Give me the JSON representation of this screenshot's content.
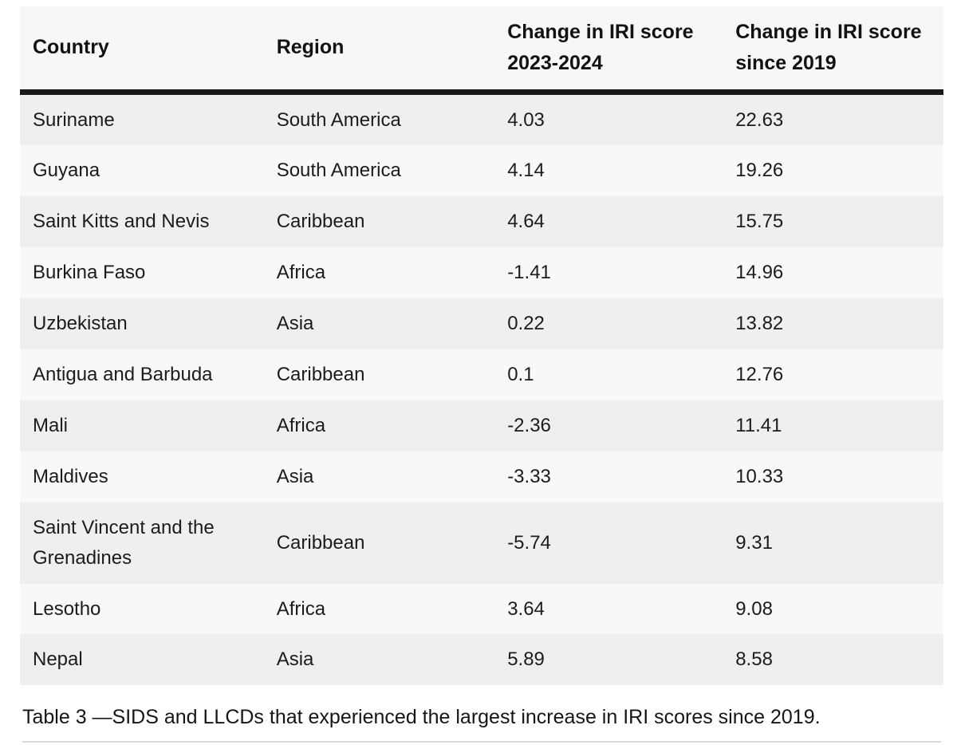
{
  "table": {
    "columns": [
      {
        "label": "Country"
      },
      {
        "label": "Region"
      },
      {
        "label": "Change in IRI score 2023-2024"
      },
      {
        "label": "Change in IRI score since 2019"
      }
    ],
    "rows": [
      {
        "country": "Suriname",
        "region": "South America",
        "change_2023_2024": "4.03",
        "change_since_2019": "22.63"
      },
      {
        "country": "Guyana",
        "region": "South America",
        "change_2023_2024": "4.14",
        "change_since_2019": "19.26"
      },
      {
        "country": "Saint Kitts and Nevis",
        "region": "Caribbean",
        "change_2023_2024": "4.64",
        "change_since_2019": "15.75"
      },
      {
        "country": "Burkina Faso",
        "region": "Africa",
        "change_2023_2024": "-1.41",
        "change_since_2019": "14.96"
      },
      {
        "country": "Uzbekistan",
        "region": "Asia",
        "change_2023_2024": "0.22",
        "change_since_2019": "13.82"
      },
      {
        "country": "Antigua and Barbuda",
        "region": "Caribbean",
        "change_2023_2024": "0.1",
        "change_since_2019": "12.76"
      },
      {
        "country": "Mali",
        "region": "Africa",
        "change_2023_2024": "-2.36",
        "change_since_2019": "11.41"
      },
      {
        "country": "Maldives",
        "region": "Asia",
        "change_2023_2024": "-3.33",
        "change_since_2019": "10.33"
      },
      {
        "country": "Saint Vincent and the Grenadines",
        "region": "Caribbean",
        "change_2023_2024": "-5.74",
        "change_since_2019": "9.31"
      },
      {
        "country": "Lesotho",
        "region": "Africa",
        "change_2023_2024": "3.64",
        "change_since_2019": "9.08"
      },
      {
        "country": "Nepal",
        "region": "Asia",
        "change_2023_2024": "5.89",
        "change_since_2019": "8.58"
      }
    ],
    "caption": "Table 3 —SIDS and LLCDs that experienced the largest increase in IRI scores since 2019."
  },
  "colors": {
    "header_bg": "#f6f7f8",
    "row_odd_bg": "#efefee",
    "row_even_bg": "#f6f8f9",
    "header_divider": "#191919",
    "text": "#1c1c1e",
    "bottom_rule": "#d8dbde"
  }
}
